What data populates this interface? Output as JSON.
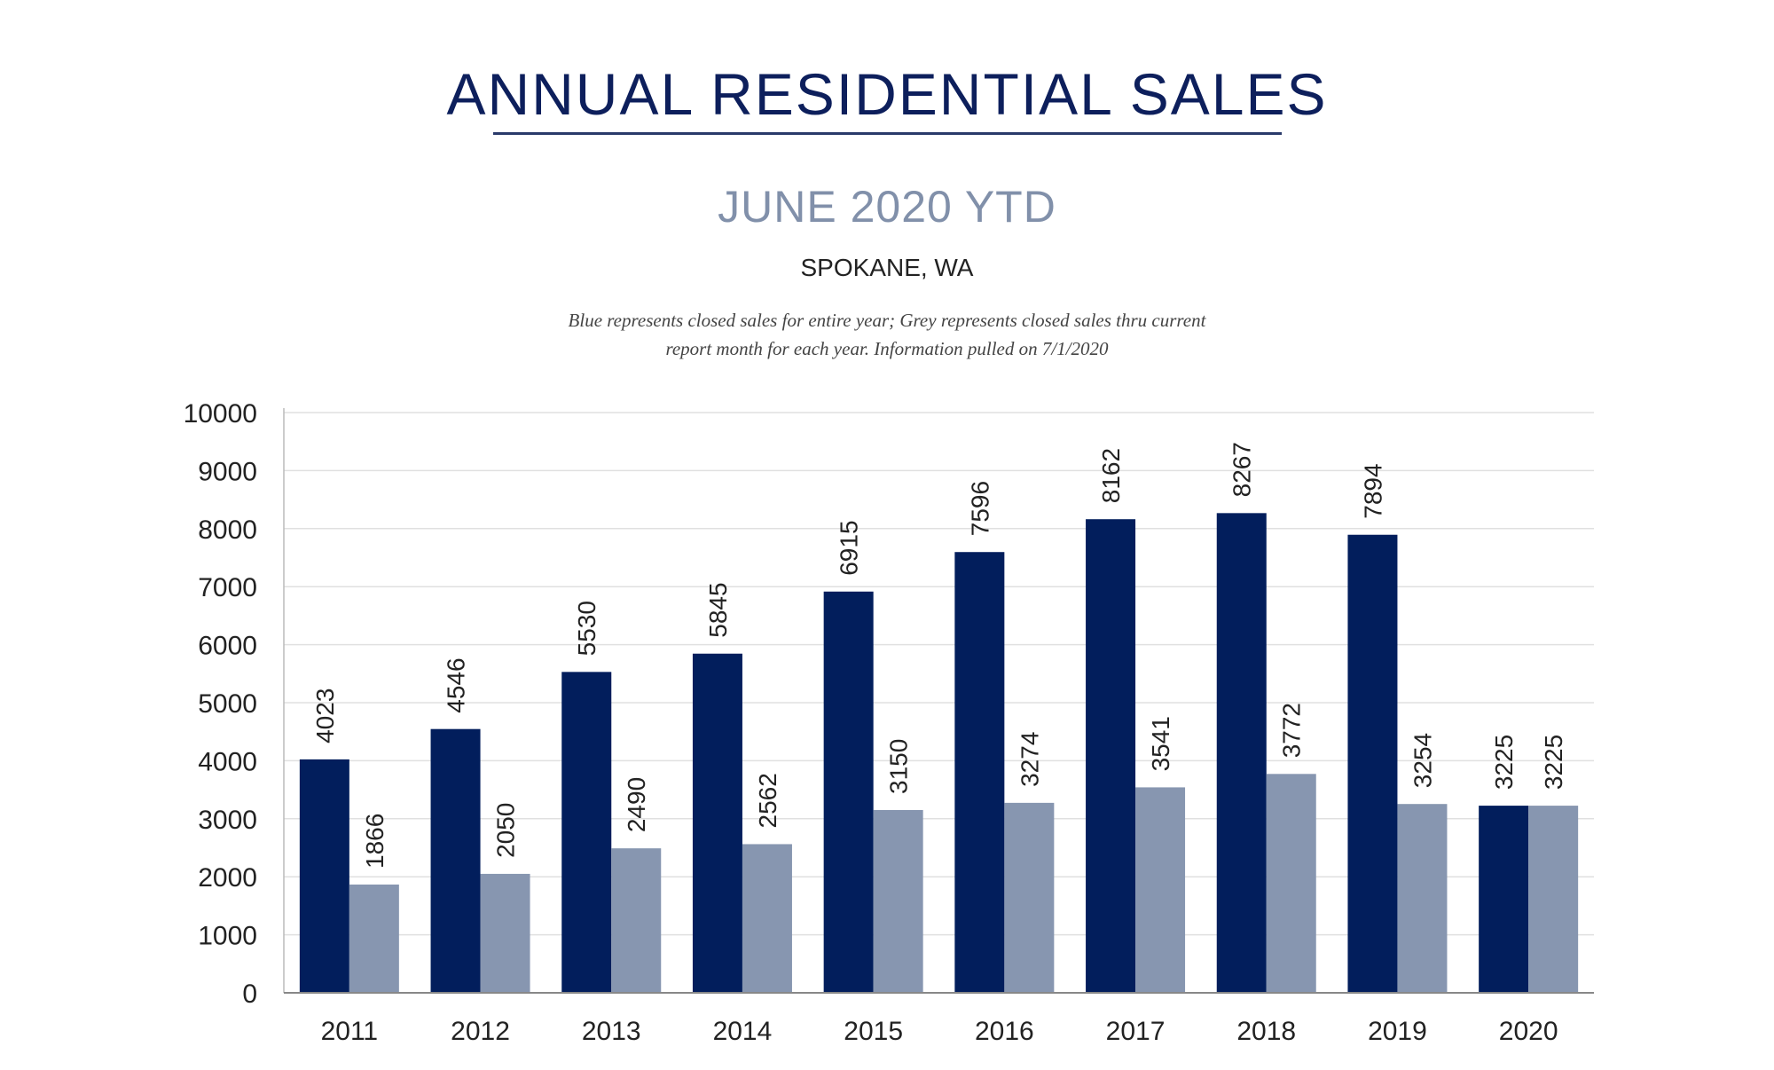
{
  "chart_data": {
    "type": "bar",
    "title": "ANNUAL RESIDENTIAL SALES",
    "subtitle": "JUNE 2020 YTD",
    "location": "SPOKANE, WA",
    "note_lines": [
      "Blue represents closed sales for entire year; Grey represents closed sales thru current",
      "report month for each year.  Information pulled on 7/1/2020"
    ],
    "categories": [
      "2011",
      "2012",
      "2013",
      "2014",
      "2015",
      "2016",
      "2017",
      "2018",
      "2019",
      "2020"
    ],
    "series": [
      {
        "values": [
          4023,
          4546,
          5530,
          5845,
          6915,
          7596,
          8162,
          8267,
          7894,
          3225
        ],
        "color": "#021e5c"
      },
      {
        "values": [
          1866,
          2050,
          2490,
          2562,
          3150,
          3274,
          3541,
          3772,
          3254,
          3225
        ],
        "color": "#8796b0"
      }
    ],
    "ylim": [
      0,
      10000
    ],
    "yticks": [
      0,
      1000,
      2000,
      3000,
      4000,
      5000,
      6000,
      7000,
      8000,
      9000,
      10000
    ],
    "grid": true,
    "data_labels": "rotated-vertical",
    "legend": "none"
  }
}
